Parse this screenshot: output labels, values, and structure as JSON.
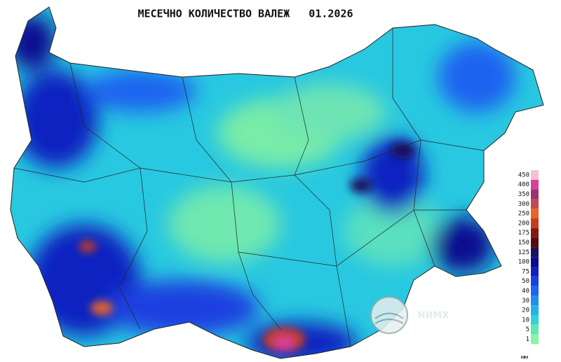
{
  "map": {
    "title": "МЕСЕЧНО КОЛИЧЕСТВО ВАЛЕЖ   01.2026",
    "logo": "НИМХ",
    "unit": "мм"
  },
  "legend": {
    "items": [
      {
        "label": "450",
        "color": "#f6c0d0"
      },
      {
        "label": "400",
        "color": "#d8409a"
      },
      {
        "label": "350",
        "color": "#a03070"
      },
      {
        "label": "300",
        "color": "#c04a50"
      },
      {
        "label": "250",
        "color": "#e8642a"
      },
      {
        "label": "200",
        "color": "#c83c1c"
      },
      {
        "label": "175",
        "color": "#801a10"
      },
      {
        "label": "150",
        "color": "#560a0a"
      },
      {
        "label": "125",
        "color": "#1a1060"
      },
      {
        "label": "100",
        "color": "#0a0a90"
      },
      {
        "label": "75",
        "color": "#1020c0"
      },
      {
        "label": "50",
        "color": "#1a40e0"
      },
      {
        "label": "40",
        "color": "#1e64f0"
      },
      {
        "label": "30",
        "color": "#2090f0"
      },
      {
        "label": "20",
        "color": "#20b4e8"
      },
      {
        "label": "10",
        "color": "#30d4d8"
      },
      {
        "label": "5",
        "color": "#60e8b0"
      },
      {
        "label": "1",
        "color": "#88f4a4"
      }
    ]
  }
}
